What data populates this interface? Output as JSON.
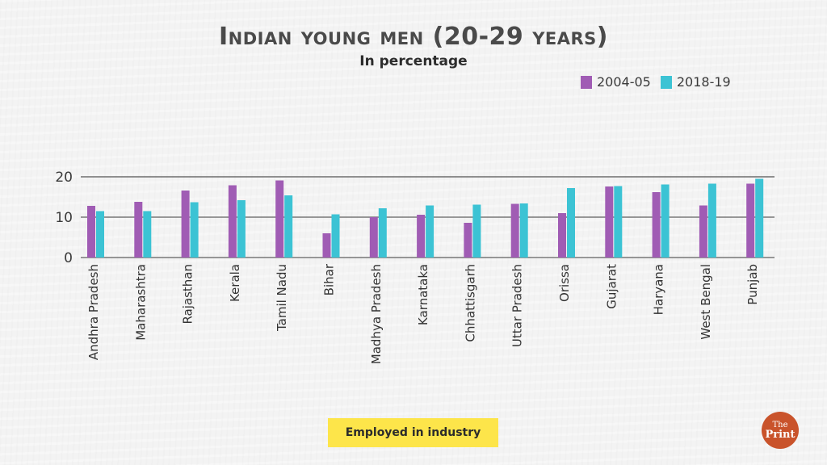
{
  "header": {
    "title": "Indian young men (20-29 years)",
    "subtitle": "In percentage"
  },
  "legend": [
    {
      "label": "2004-05",
      "color": "#a05cb4"
    },
    {
      "label": "2018-19",
      "color": "#3cc3d4"
    }
  ],
  "footer": {
    "tag_label": "Employed in industry",
    "tag_color": "#fde54a",
    "logo_line1": "The",
    "logo_line2": "Print"
  },
  "chart_data": {
    "type": "bar",
    "title": "Indian young men (20-29 years)",
    "subtitle": "In percentage",
    "xlabel": "",
    "ylabel": "",
    "ylim": [
      0,
      20
    ],
    "yticks": [
      0,
      10,
      20
    ],
    "grid": true,
    "legend_position": "top-right",
    "categories": [
      "Andhra Pradesh",
      "Maharashtra",
      "Rajasthan",
      "Kerala",
      "Tamil Nadu",
      "Bihar",
      "Madhya Pradesh",
      "Karnataka",
      "Chhattisgarh",
      "Uttar Pradesh",
      "Orissa",
      "Gujarat",
      "Haryana",
      "West Bengal",
      "Punjab"
    ],
    "series": [
      {
        "name": "2004-05",
        "color": "#a05cb4",
        "values": [
          12.8,
          13.8,
          16.6,
          17.9,
          19.1,
          6.0,
          10.0,
          10.6,
          8.6,
          13.3,
          11.0,
          17.6,
          16.2,
          12.9,
          18.3
        ]
      },
      {
        "name": "2018-19",
        "color": "#3cc3d4",
        "values": [
          11.5,
          11.5,
          13.7,
          14.2,
          15.4,
          10.7,
          12.2,
          12.9,
          13.1,
          13.4,
          17.2,
          17.7,
          18.1,
          18.3,
          19.5
        ]
      }
    ]
  }
}
